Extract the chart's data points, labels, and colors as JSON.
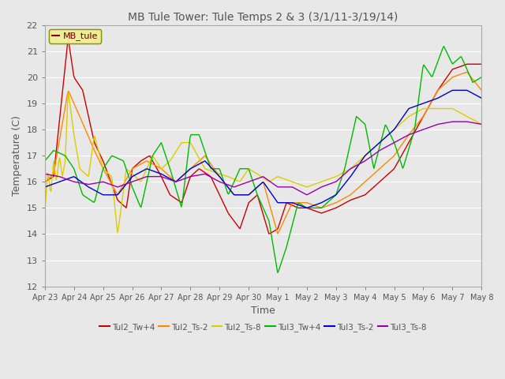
{
  "title": "MB Tule Tower: Tule Temps 2 & 3 (3/1/11-3/19/14)",
  "xlabel": "Time",
  "ylabel": "Temperature (C)",
  "ylim": [
    12.0,
    22.0
  ],
  "yticks": [
    12.0,
    13.0,
    14.0,
    15.0,
    16.0,
    17.0,
    18.0,
    19.0,
    20.0,
    21.0,
    22.0
  ],
  "x_labels": [
    "Apr 23",
    "Apr 24",
    "Apr 25",
    "Apr 26",
    "Apr 27",
    "Apr 28",
    "Apr 29",
    "Apr 30",
    "May 1",
    "May 2",
    "May 3",
    "May 4",
    "May 5",
    "May 6",
    "May 7",
    "May 8"
  ],
  "legend_label": "MB_tule",
  "legend_box_facecolor": "#eeee99",
  "legend_box_edgecolor": "#888800",
  "legend_text_color": "#880000",
  "series_names": [
    "Tul2_Tw+4",
    "Tul2_Ts-2",
    "Tul2_Ts-8",
    "Tul3_Tw+4",
    "Tul3_Ts-2",
    "Tul3_Ts-8"
  ],
  "series_colors": [
    "#cc0000",
    "#ff8800",
    "#ddcc00",
    "#00bb00",
    "#0000cc",
    "#9900aa"
  ],
  "background_color": "#e8e8e8",
  "plot_bg_color": "#e8e8e8",
  "grid_color": "#ffffff",
  "title_color": "#555555",
  "axis_label_color": "#555555",
  "tick_label_color": "#555555",
  "title_fontsize": 10,
  "axis_label_fontsize": 9,
  "tick_fontsize": 8,
  "legend_fontsize": 8,
  "lw": 1.0
}
